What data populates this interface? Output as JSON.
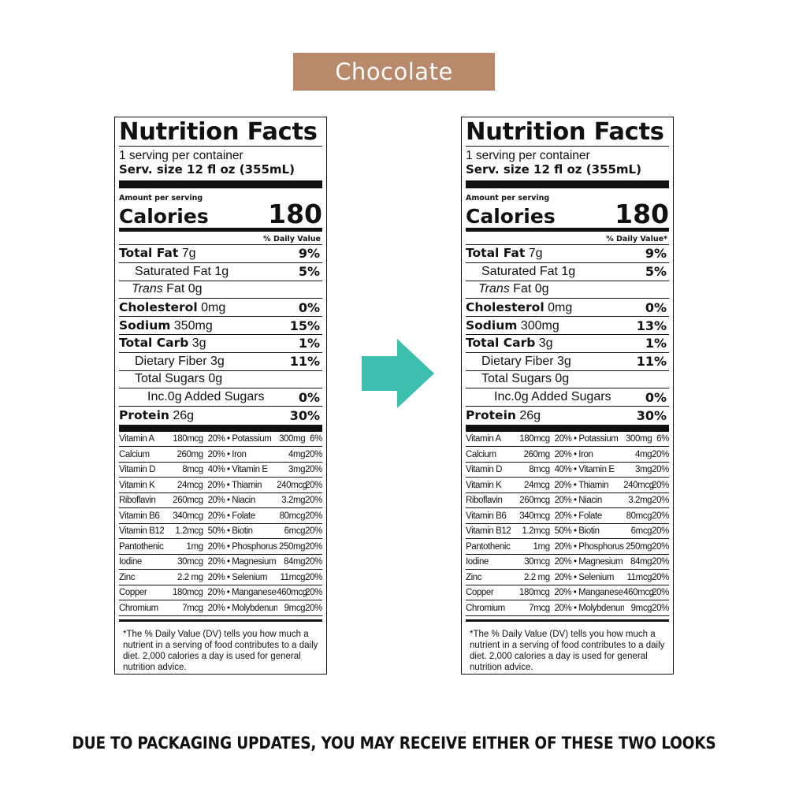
{
  "header": {
    "flavor": "Chocolate",
    "accent_color": "#b8896b"
  },
  "arrow": {
    "icon": "right-arrow-icon",
    "color": "#3dbfae"
  },
  "footer": {
    "notice": "DUE TO PACKAGING UPDATES, YOU MAY RECEIVE EITHER OF THESE TWO LOOKS"
  },
  "labels": [
    {
      "title": "Nutrition Facts",
      "servings": "1 serving per container",
      "serv_size": "Serv. size  12 fl oz (355mL)",
      "amount_per_serving": "Amount per serving",
      "calories_label": "Calories",
      "calories_value": "180",
      "dv_header": "% Daily Value",
      "nutrients": [
        {
          "name": "Total Fat",
          "amount": " 7g",
          "pct": "9%"
        },
        {
          "name": "Saturated Fat 1g",
          "amount": "",
          "pct": "5%"
        },
        {
          "name": "Trans",
          "amount": " Fat 0g",
          "pct": ""
        },
        {
          "name": "Cholesterol",
          "amount": " 0mg",
          "pct": "0%"
        },
        {
          "name": "Sodium",
          "amount": " 350mg",
          "pct": "15%"
        },
        {
          "name": "Total Carb",
          "amount": " 3g",
          "pct": "1%"
        },
        {
          "name": "Dietary Fiber 3g",
          "amount": "",
          "pct": "11%"
        },
        {
          "name": "Total Sugars 0g",
          "amount": "",
          "pct": ""
        },
        {
          "name": "Inc.0g Added Sugars",
          "amount": "",
          "pct": "0%"
        },
        {
          "name": "Protein",
          "amount": " 26g",
          "pct": "30%"
        }
      ],
      "vitamins": [
        [
          "Vitamin A",
          "180mcg",
          "20%",
          "Potassium",
          "300mg",
          "6%"
        ],
        [
          "Calcium",
          "260mg",
          "20%",
          "Iron",
          "4mg",
          "20%"
        ],
        [
          "Vitamin D",
          "8mcg",
          "40%",
          "Vitamin E",
          "3mg",
          "20%"
        ],
        [
          "Vitamin K",
          "24mcg",
          "20%",
          "Thiamin",
          "240mcg",
          "20%"
        ],
        [
          "Riboflavin",
          "260mcg",
          "20%",
          "Niacin",
          "3.2mg",
          "20%"
        ],
        [
          "Vitamin B6",
          "340mcg",
          "20%",
          "Folate",
          "80mcg",
          "20%"
        ],
        [
          "Vitamin B12",
          "1.2mcg",
          "50%",
          "Biotin",
          "6mcg",
          "20%"
        ],
        [
          "PantothenicAcid",
          "1mg",
          "20%",
          "Phosphorus",
          "250mg",
          "20%"
        ],
        [
          "Iodine",
          "30mcg",
          "20%",
          "Magnesium",
          "84mg",
          "20%"
        ],
        [
          "Zinc",
          "2.2 mg",
          "20%",
          "Selenium",
          "11mcg",
          "20%"
        ],
        [
          "Copper",
          "180mcg",
          "20%",
          "Manganese",
          "460mcg",
          "20%"
        ],
        [
          "Chromium",
          "7mcg",
          "20%",
          "Molybdenum",
          "9mcg",
          "20%"
        ]
      ],
      "footnote": "*The % Daily Value (DV) tells you how much a nutrient in a serving of food contributes to a daily diet. 2,000 calories a day is used for general nutrition advice."
    },
    {
      "title": "Nutrition Facts",
      "servings": "1 serving per container",
      "serv_size": "Serv. size  12 fl oz (355mL)",
      "amount_per_serving": "Amount per serving",
      "calories_label": "Calories",
      "calories_value": "180",
      "dv_header": "% Daily Value*",
      "nutrients": [
        {
          "name": "Total Fat",
          "amount": " 7g",
          "pct": "9%"
        },
        {
          "name": "Saturated Fat 1g",
          "amount": "",
          "pct": "5%"
        },
        {
          "name": "Trans",
          "amount": " Fat 0g",
          "pct": ""
        },
        {
          "name": "Cholesterol",
          "amount": " 0mg",
          "pct": "0%"
        },
        {
          "name": "Sodium",
          "amount": " 300mg",
          "pct": "13%"
        },
        {
          "name": "Total Carb",
          "amount": " 3g",
          "pct": "1%"
        },
        {
          "name": "Dietary Fiber 3g",
          "amount": "",
          "pct": "11%"
        },
        {
          "name": "Total Sugars 0g",
          "amount": "",
          "pct": ""
        },
        {
          "name": "Inc.0g Added Sugars",
          "amount": "",
          "pct": "0%"
        },
        {
          "name": "Protein",
          "amount": " 26g",
          "pct": "30%"
        }
      ],
      "vitamins": [
        [
          "Vitamin A",
          "180mcg",
          "20%",
          "Potassium",
          "300mg",
          "6%"
        ],
        [
          "Calcium",
          "260mg",
          "20%",
          "Iron",
          "4mg",
          "20%"
        ],
        [
          "Vitamin D",
          "8mcg",
          "40%",
          "Vitamin E",
          "3mg",
          "20%"
        ],
        [
          "Vitamin K",
          "24mcg",
          "20%",
          "Thiamin",
          "240mcg",
          "20%"
        ],
        [
          "Riboflavin",
          "260mcg",
          "20%",
          "Niacin",
          "3.2mg",
          "20%"
        ],
        [
          "Vitamin B6",
          "340mcg",
          "20%",
          "Folate",
          "80mcg",
          "20%"
        ],
        [
          "Vitamin B12",
          "1.2mcg",
          "50%",
          "Biotin",
          "6mcg",
          "20%"
        ],
        [
          "PantothenicAcid",
          "1mg",
          "20%",
          "Phosphorus",
          "250mg",
          "20%"
        ],
        [
          "Iodine",
          "30mcg",
          "20%",
          "Magnesium",
          "84mg",
          "20%"
        ],
        [
          "Zinc",
          "2.2 mg",
          "20%",
          "Selenium",
          "11mcg",
          "20%"
        ],
        [
          "Copper",
          "180mcg",
          "20%",
          "Manganese",
          "460mcg",
          "20%"
        ],
        [
          "Chromium",
          "7mcg",
          "20%",
          "Molybdenum",
          "9mcg",
          "20%"
        ]
      ],
      "footnote": "*The % Daily Value (DV) tells you how much a nutrient in a serving of food contributes to a daily diet. 2,000 calories a day is used for general nutrition advice."
    }
  ]
}
